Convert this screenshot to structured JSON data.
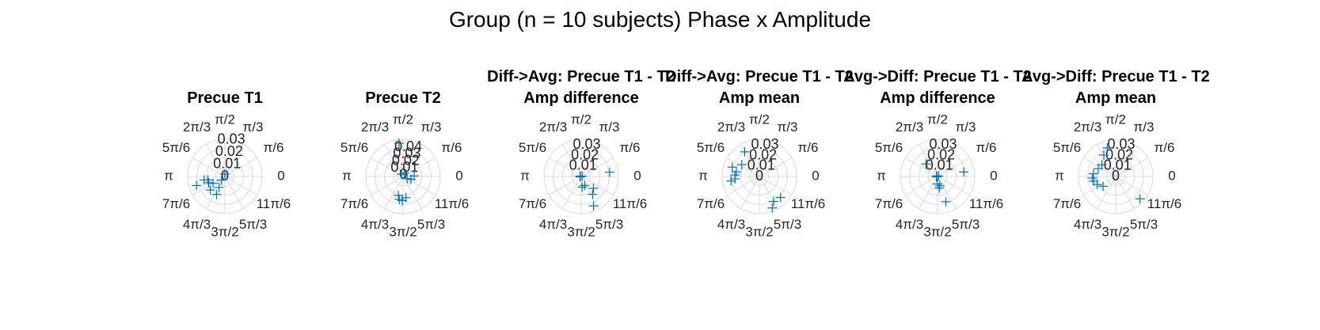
{
  "figure": {
    "title": "Group (n = 10 subjects) Phase x Amplitude"
  },
  "colors": {
    "marker": "#0072bd",
    "grid": "#d8d8d8",
    "text": "#262626"
  },
  "chart_data": [
    {
      "type": "scatter",
      "coordinates": "polar",
      "title": "Precue T1",
      "suptitle": "",
      "theta_tick_labels": [
        "0",
        "π/6",
        "π/3",
        "π/2",
        "2π/3",
        "5π/6",
        "π",
        "7π/6",
        "4π/3",
        "3π/2",
        "5π/3",
        "11π/6"
      ],
      "r_tick_labels": [
        "0",
        "0.01",
        "0.02",
        "0.03"
      ],
      "rlim": [
        0,
        0.03
      ],
      "marker": "+",
      "points": [
        {
          "theta": 1.62,
          "r": 0.002
        },
        {
          "theta": 3.31,
          "r": 0.017
        },
        {
          "theta": 3.34,
          "r": 0.014
        },
        {
          "theta": 3.51,
          "r": 0.014
        },
        {
          "theta": 3.67,
          "r": 0.011
        },
        {
          "theta": 3.45,
          "r": 0.024
        },
        {
          "theta": 3.89,
          "r": 0.016
        },
        {
          "theta": 4.23,
          "r": 0.01
        },
        {
          "theta": 4.28,
          "r": 0.016
        },
        {
          "theta": 3.98,
          "r": 0.004
        }
      ]
    },
    {
      "type": "scatter",
      "coordinates": "polar",
      "title": "Precue T2",
      "suptitle": "",
      "theta_tick_labels": [
        "0",
        "π/6",
        "π/3",
        "π/2",
        "2π/3",
        "5π/6",
        "π",
        "7π/6",
        "4π/3",
        "3π/2",
        "5π/3",
        "11π/6"
      ],
      "r_tick_labels": [
        "0",
        "0.01",
        "0.02",
        "0.03",
        "0.04"
      ],
      "rlim": [
        0,
        0.04
      ],
      "marker": "+",
      "points": [
        {
          "theta": 1.69,
          "r": 0.036
        },
        {
          "theta": 0.05,
          "r": 0.012
        },
        {
          "theta": 5.93,
          "r": 0.009
        },
        {
          "theta": 4.47,
          "r": 0.021
        },
        {
          "theta": 4.55,
          "r": 0.025
        },
        {
          "theta": 4.68,
          "r": 0.026
        },
        {
          "theta": 4.85,
          "r": 0.023
        },
        {
          "theta": 5.8,
          "r": 0.005
        },
        {
          "theta": 1.2,
          "r": 0.004
        },
        {
          "theta": 2.2,
          "r": 0.003
        }
      ]
    },
    {
      "type": "scatter",
      "coordinates": "polar",
      "title": "Amp difference",
      "suptitle": "Diff->Avg: Precue T1 - T2",
      "theta_tick_labels": [
        "0",
        "π/6",
        "π/3",
        "π/2",
        "2π/3",
        "5π/6",
        "π",
        "7π/6",
        "4π/3",
        "3π/2",
        "5π/3",
        "11π/6"
      ],
      "r_tick_labels": [
        "0.01",
        "0.02",
        "0.03"
      ],
      "rlim": [
        0,
        0.035
      ],
      "marker": "+",
      "points": [
        {
          "theta": 0.15,
          "r": 0.027
        },
        {
          "theta": 5.11,
          "r": 0.03
        },
        {
          "theta": 5.28,
          "r": 0.02
        },
        {
          "theta": 5.51,
          "r": 0.016
        },
        {
          "theta": 5.09,
          "r": 0.009
        },
        {
          "theta": 4.8,
          "r": 0.01
        },
        {
          "theta": 3.14,
          "r": 0.001
        },
        {
          "theta": 2.8,
          "r": 0.001
        },
        {
          "theta": 3.5,
          "r": 0.001
        },
        {
          "theta": 0.4,
          "r": 0.001
        }
      ]
    },
    {
      "type": "scatter",
      "coordinates": "polar",
      "title": "Amp mean",
      "suptitle": "Diff->Avg: Precue T1 - T2",
      "theta_tick_labels": [
        "0",
        "π/6",
        "π/3",
        "π/2",
        "2π/3",
        "5π/6",
        "π",
        "7π/6",
        "4π/3",
        "3π/2",
        "5π/3",
        "11π/6"
      ],
      "r_tick_labels": [
        "0",
        "0.01",
        "0.02",
        "0.03"
      ],
      "rlim": [
        0,
        0.035
      ],
      "marker": "+",
      "points": [
        {
          "theta": 2.11,
          "r": 0.027
        },
        {
          "theta": 2.81,
          "r": 0.027
        },
        {
          "theta": 2.94,
          "r": 0.022
        },
        {
          "theta": 3.08,
          "r": 0.023
        },
        {
          "theta": 3.24,
          "r": 0.023
        },
        {
          "theta": 3.3,
          "r": 0.027
        },
        {
          "theta": 5.5,
          "r": 0.028
        },
        {
          "theta": 5.23,
          "r": 0.027
        },
        {
          "theta": 5.1,
          "r": 0.032
        },
        {
          "theta": 2.55,
          "r": 0.02
        }
      ]
    },
    {
      "type": "scatter",
      "coordinates": "polar",
      "title": "Amp difference",
      "suptitle": "Avg->Diff: Precue T1 - T2",
      "theta_tick_labels": [
        "0",
        "π/6",
        "π/3",
        "π/2",
        "2π/3",
        "5π/6",
        "π",
        "7π/6",
        "4π/3",
        "3π/2",
        "5π/3",
        "11π/6"
      ],
      "r_tick_labels": [
        "0.01",
        "0.02",
        "0.03"
      ],
      "rlim": [
        0,
        0.035
      ],
      "marker": "+",
      "points": [
        {
          "theta": 2.32,
          "r": 0.016
        },
        {
          "theta": 0.17,
          "r": 0.025
        },
        {
          "theta": 5.03,
          "r": 0.025
        },
        {
          "theta": 4.85,
          "r": 0.011
        },
        {
          "theta": 4.95,
          "r": 0.009
        },
        {
          "theta": 4.71,
          "r": 0.007
        },
        {
          "theta": 3.14,
          "r": 0.001
        },
        {
          "theta": 2.6,
          "r": 0.001
        },
        {
          "theta": 3.6,
          "r": 0.001
        },
        {
          "theta": 0.5,
          "r": 0.001
        }
      ]
    },
    {
      "type": "scatter",
      "coordinates": "polar",
      "title": "Amp mean",
      "suptitle": "Avg->Diff: Precue T1 - T2",
      "theta_tick_labels": [
        "0",
        "π/6",
        "π/3",
        "π/2",
        "2π/3",
        "5π/6",
        "π",
        "7π/6",
        "4π/3",
        "3π/2",
        "5π/3",
        "11π/6"
      ],
      "r_tick_labels": [
        "0",
        "0.01",
        "0.02",
        "0.03"
      ],
      "rlim": [
        0,
        0.035
      ],
      "marker": "+",
      "points": [
        {
          "theta": 1.86,
          "r": 0.028
        },
        {
          "theta": 2.08,
          "r": 0.023
        },
        {
          "theta": 2.44,
          "r": 0.017
        },
        {
          "theta": 2.72,
          "r": 0.018
        },
        {
          "theta": 3.02,
          "r": 0.021
        },
        {
          "theta": 3.21,
          "r": 0.022
        },
        {
          "theta": 3.35,
          "r": 0.021
        },
        {
          "theta": 3.55,
          "r": 0.019
        },
        {
          "theta": 5.54,
          "r": 0.031
        },
        {
          "theta": 3.8,
          "r": 0.015
        }
      ]
    }
  ]
}
